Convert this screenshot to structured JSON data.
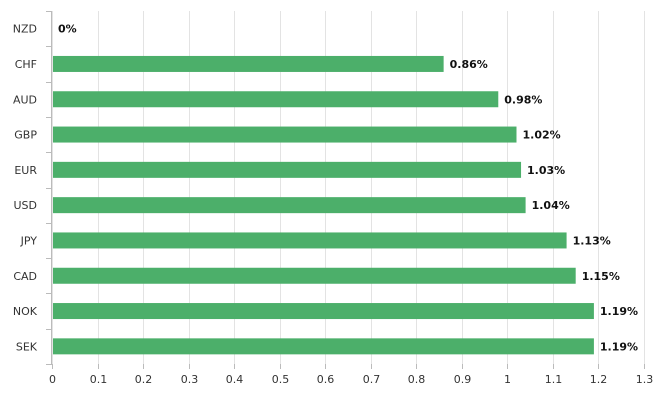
{
  "chart_data": {
    "type": "bar",
    "orientation": "horizontal",
    "title": "",
    "xlabel": "",
    "ylabel": "",
    "categories": [
      "NZD",
      "CHF",
      "AUD",
      "GBP",
      "EUR",
      "USD",
      "JPY",
      "CAD",
      "NOK",
      "SEK"
    ],
    "values": [
      0,
      0.86,
      0.98,
      1.02,
      1.03,
      1.04,
      1.13,
      1.15,
      1.19,
      1.19
    ],
    "data_labels": [
      "0%",
      "0.86%",
      "0.98%",
      "1.02%",
      "1.03%",
      "1.04%",
      "1.13%",
      "1.15%",
      "1.19%",
      "1.19%"
    ],
    "xlim": [
      0,
      1.3
    ],
    "ticks": [
      0,
      0.1,
      0.2,
      0.3,
      0.4,
      0.5,
      0.6,
      0.7,
      0.8,
      0.9,
      1,
      1.1,
      1.2,
      1.3
    ],
    "tick_labels": [
      "0",
      "0.1",
      "0.2",
      "0.3",
      "0.4",
      "0.5",
      "0.6",
      "0.7",
      "0.8",
      "0.9",
      "1",
      "1.1",
      "1.2",
      "1.3"
    ],
    "grid": true,
    "legend": "none",
    "bar_color": "#4caf6a",
    "grid_color": "#e3e3e3",
    "axis_color": "#bbbbbb"
  }
}
